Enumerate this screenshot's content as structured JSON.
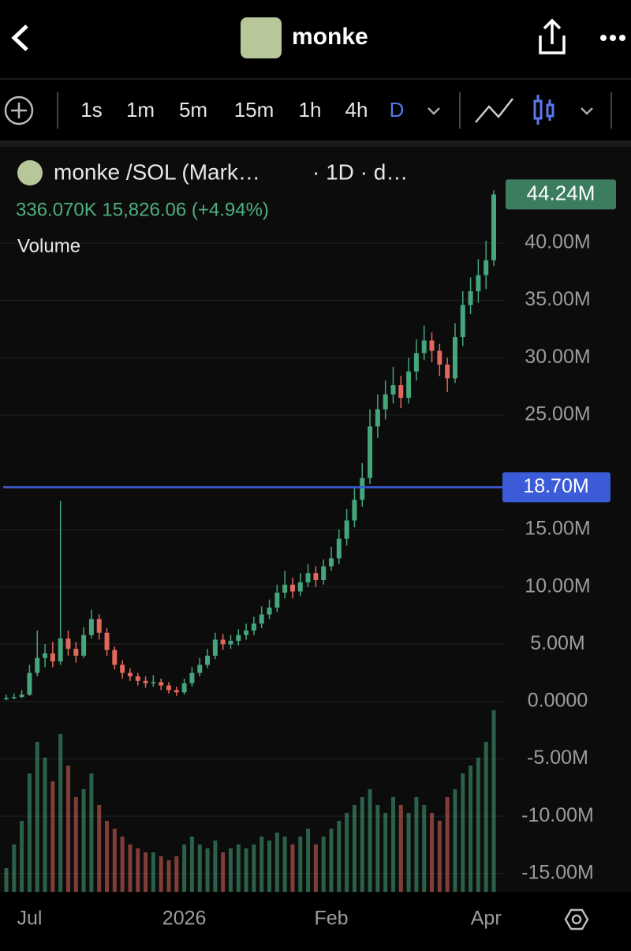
{
  "header": {
    "title": "monke"
  },
  "toolbar": {
    "intervals": [
      "1s",
      "1m",
      "5m",
      "15m",
      "1h",
      "4h",
      "D"
    ]
  },
  "chart_data": {
    "type": "candlestick",
    "title": "monke /SOL (Mark…",
    "subtitle": "· 1D · d…",
    "stats": "336.070K 15,826.06 (+4.94%)",
    "volume_label": "Volume",
    "categories": [
      null,
      null,
      null,
      "Jul",
      null,
      null,
      null,
      null,
      null,
      null,
      null,
      null,
      null,
      null,
      null,
      null,
      null,
      null,
      null,
      null,
      null,
      null,
      null,
      "2026",
      null,
      null,
      null,
      null,
      null,
      null,
      null,
      null,
      null,
      null,
      null,
      null,
      null,
      null,
      null,
      null,
      null,
      null,
      "Feb",
      null,
      null,
      null,
      null,
      null,
      null,
      null,
      null,
      null,
      null,
      null,
      null,
      null,
      null,
      null,
      null,
      null,
      null,
      null,
      "Apr",
      null
    ],
    "open": [
      0.2,
      0.3,
      0.4,
      0.6,
      2.5,
      3.8,
      4.2,
      3.5,
      5.5,
      4.6,
      4.0,
      5.8,
      7.2,
      6.0,
      4.5,
      3.2,
      2.5,
      2.2,
      1.8,
      1.6,
      1.7,
      1.4,
      1.0,
      0.8,
      1.6,
      2.5,
      3.2,
      4.0,
      5.4,
      5.0,
      5.3,
      5.8,
      6.2,
      6.8,
      7.6,
      8.2,
      9.5,
      10.2,
      9.6,
      10.4,
      11.2,
      10.6,
      11.8,
      12.5,
      14.2,
      15.8,
      17.6,
      19.5,
      24.0,
      25.5,
      26.8,
      27.6,
      26.5,
      28.8,
      30.4,
      31.5,
      30.6,
      29.4,
      28.2,
      31.8,
      34.6,
      35.8,
      37.2,
      38.5
    ],
    "high": [
      0.6,
      0.7,
      1.0,
      3.2,
      6.2,
      5.0,
      5.2,
      17.5,
      6.2,
      5.2,
      6.5,
      8.0,
      7.6,
      6.4,
      4.8,
      3.6,
      2.9,
      2.5,
      2.2,
      2.3,
      2.0,
      1.7,
      1.3,
      2.0,
      3.0,
      3.8,
      4.6,
      6.0,
      5.9,
      5.8,
      6.3,
      6.8,
      7.4,
      8.3,
      8.9,
      10.2,
      11.4,
      10.8,
      11.2,
      12.0,
      11.8,
      12.4,
      13.5,
      15.0,
      16.8,
      18.6,
      20.8,
      25.5,
      26.8,
      28.0,
      29.2,
      28.4,
      30.0,
      31.6,
      32.8,
      32.2,
      31.2,
      30.0,
      33.0,
      35.8,
      37.0,
      38.6,
      40.2,
      44.6
    ],
    "low": [
      0.1,
      0.2,
      0.3,
      0.5,
      2.2,
      3.0,
      3.0,
      3.2,
      4.0,
      3.4,
      3.8,
      5.5,
      5.4,
      4.0,
      2.8,
      2.0,
      1.8,
      1.4,
      1.2,
      1.3,
      1.0,
      0.7,
      0.5,
      0.6,
      1.3,
      2.2,
      2.9,
      3.7,
      4.5,
      4.6,
      4.9,
      5.4,
      5.8,
      6.4,
      7.2,
      7.8,
      9.0,
      9.0,
      9.2,
      10.0,
      10.0,
      10.2,
      11.4,
      12.0,
      13.6,
      15.2,
      17.0,
      19.0,
      23.0,
      24.6,
      26.0,
      25.6,
      26.0,
      28.0,
      29.8,
      29.6,
      28.4,
      27.0,
      27.8,
      31.0,
      33.8,
      34.8,
      36.0,
      38.0
    ],
    "close": [
      0.3,
      0.4,
      0.6,
      2.5,
      3.8,
      4.2,
      3.5,
      5.5,
      4.6,
      4.0,
      5.8,
      7.2,
      6.0,
      4.5,
      3.2,
      2.5,
      2.2,
      1.8,
      1.6,
      1.7,
      1.4,
      1.0,
      0.8,
      1.6,
      2.5,
      3.2,
      4.0,
      5.4,
      5.0,
      5.3,
      5.8,
      6.2,
      6.8,
      7.6,
      8.2,
      9.5,
      10.2,
      9.6,
      10.4,
      11.2,
      10.6,
      11.8,
      12.5,
      14.2,
      15.8,
      17.6,
      19.5,
      24.0,
      25.5,
      26.8,
      27.6,
      26.5,
      28.8,
      30.4,
      31.5,
      30.6,
      29.4,
      28.2,
      31.8,
      34.6,
      35.8,
      37.2,
      38.5,
      44.24
    ],
    "volume": [
      30,
      60,
      90,
      150,
      190,
      170,
      140,
      200,
      160,
      120,
      130,
      150,
      110,
      90,
      80,
      70,
      60,
      55,
      50,
      50,
      45,
      40,
      45,
      60,
      70,
      60,
      55,
      65,
      50,
      55,
      60,
      55,
      60,
      70,
      65,
      75,
      70,
      60,
      70,
      80,
      60,
      70,
      80,
      90,
      100,
      110,
      120,
      130,
      110,
      100,
      120,
      110,
      100,
      120,
      110,
      100,
      90,
      120,
      130,
      150,
      160,
      170,
      190,
      230
    ],
    "up_color": "#45a57c",
    "down_color": "#e0685c",
    "ylim": [
      -16.6,
      48.4
    ],
    "yticks": [
      {
        "value": -15,
        "label": "-15.00M"
      },
      {
        "value": -10,
        "label": "-10.00M"
      },
      {
        "value": -5,
        "label": "-5.00M"
      },
      {
        "value": 0,
        "label": "0.0000"
      },
      {
        "value": 5,
        "label": "5.00M"
      },
      {
        "value": 10,
        "label": "10.00M"
      },
      {
        "value": 15,
        "label": "15.00M"
      },
      {
        "value": 25,
        "label": "25.00M"
      },
      {
        "value": 30,
        "label": "30.00M"
      },
      {
        "value": 35,
        "label": "35.00M"
      },
      {
        "value": 40,
        "label": "40.00M"
      }
    ],
    "price_line": {
      "value": 18.7,
      "label": "18.70M",
      "color": "#3c5bd8"
    },
    "last_price": {
      "value": 44.24,
      "label": "44.24M",
      "color": "#3b7d5e"
    },
    "grid": true
  }
}
